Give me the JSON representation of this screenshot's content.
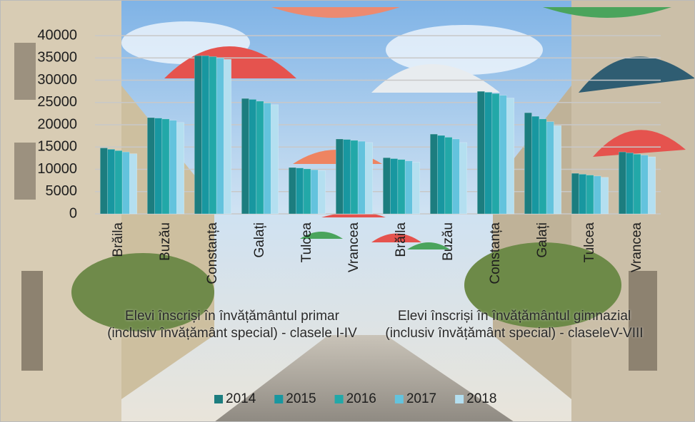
{
  "chart_data": {
    "type": "bar",
    "groups": [
      {
        "label": "Elevi înscriși în învățământul primar (inclusiv învățământ special) - clasele I-IV",
        "categories": [
          "Brăila",
          "Buzău",
          "Constanța",
          "Galați",
          "Tulcea",
          "Vrancea"
        ]
      },
      {
        "label": "Elevi înscriși în învățământul gimnazial (inclusiv învățământ special) - claseleV-VIII",
        "categories": [
          "Brăila",
          "Buzău",
          "Constanța",
          "Galați",
          "Tulcea",
          "Vrancea"
        ]
      }
    ],
    "series": [
      {
        "name": "2014",
        "color": "#1c7d7f",
        "values": [
          14800,
          21600,
          35500,
          25900,
          10400,
          16800,
          12600,
          17900,
          27500,
          22700,
          9100,
          13900
        ]
      },
      {
        "name": "2015",
        "color": "#1897a0",
        "values": [
          14500,
          21500,
          35500,
          25700,
          10300,
          16700,
          12400,
          17600,
          27300,
          21900,
          8900,
          13700
        ]
      },
      {
        "name": "2016",
        "color": "#22a8a8",
        "values": [
          14200,
          21300,
          35300,
          25300,
          10100,
          16500,
          12200,
          17200,
          27000,
          21300,
          8700,
          13400
        ]
      },
      {
        "name": "2017",
        "color": "#63c3dd",
        "values": [
          13900,
          21000,
          35000,
          24900,
          9900,
          16300,
          11900,
          16800,
          26600,
          20700,
          8500,
          13200
        ]
      },
      {
        "name": "2018",
        "color": "#b4dff0",
        "values": [
          13500,
          20500,
          34700,
          24500,
          9700,
          16000,
          11600,
          16000,
          26000,
          19800,
          8200,
          12800
        ]
      }
    ],
    "ylim": [
      0,
      40000
    ],
    "yticks": [
      0,
      5000,
      10000,
      15000,
      20000,
      25000,
      30000,
      35000,
      40000
    ],
    "grid": true
  }
}
